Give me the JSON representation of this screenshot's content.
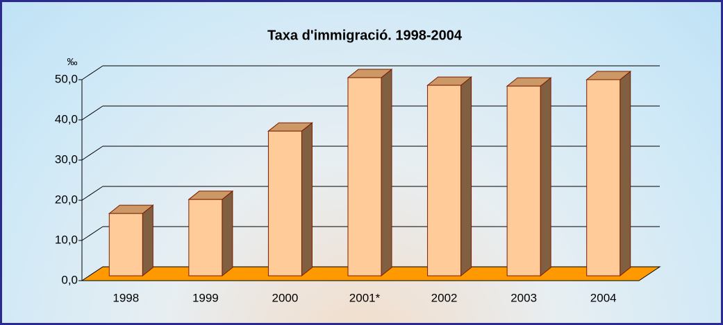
{
  "chart_data": {
    "type": "bar3d",
    "title": "Taxa d'immigració. 1998-2004",
    "y_label": "‰",
    "categories": [
      "1998",
      "1999",
      "2000",
      "2001*",
      "2002",
      "2003",
      "2004"
    ],
    "values": [
      15.5,
      19.0,
      36.0,
      49.3,
      47.4,
      47.2,
      48.8
    ],
    "color": "#ffcc99",
    "floor_color": "#ff9900",
    "ylim": [
      0,
      50
    ],
    "yticks": [
      {
        "value": 0,
        "label": "0,0"
      },
      {
        "value": 10,
        "label": "10,0"
      },
      {
        "value": 20,
        "label": "20,0"
      },
      {
        "value": 30,
        "label": "30,0"
      },
      {
        "value": 40,
        "label": "40,0"
      },
      {
        "value": 50,
        "label": "50,0"
      }
    ],
    "grid": true
  }
}
